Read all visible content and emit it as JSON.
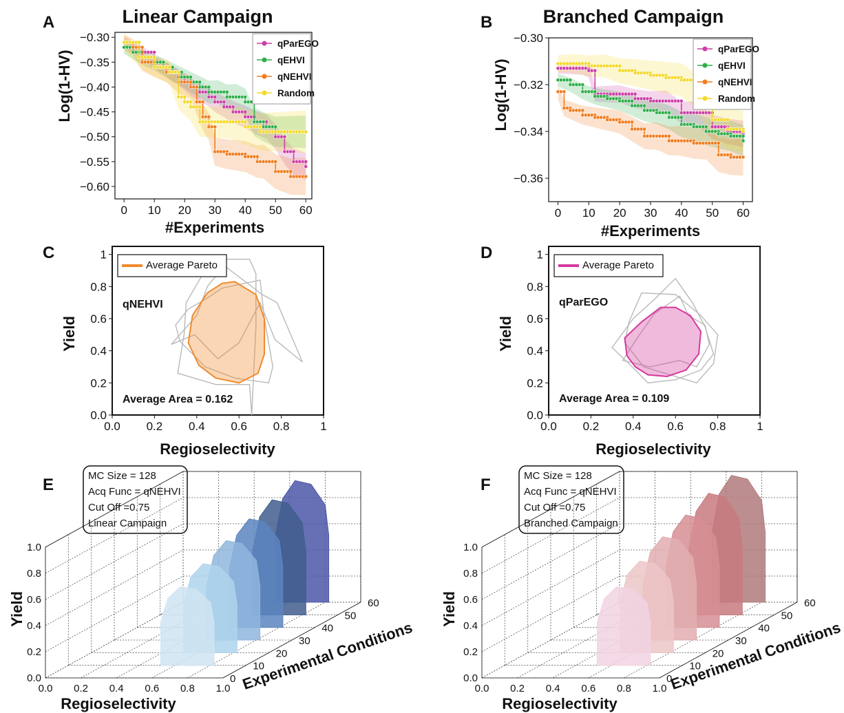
{
  "panels": {
    "A": "A",
    "B": "B",
    "C": "C",
    "D": "D",
    "E": "E",
    "F": "F"
  },
  "chart_data": [
    {
      "id": "A",
      "type": "line",
      "title": "Linear Campaign",
      "xlabel": "#Experiments",
      "ylabel": "Log(1-HV)",
      "xlim": [
        -3,
        62
      ],
      "ylim": [
        -0.625,
        -0.29
      ],
      "xticks": [
        0,
        10,
        20,
        30,
        40,
        50,
        60
      ],
      "yticks": [
        -0.3,
        -0.35,
        -0.4,
        -0.45,
        -0.5,
        -0.55,
        -0.6
      ],
      "ytick_labels": [
        "−0.30",
        "−0.35",
        "−0.40",
        "−0.45",
        "−0.50",
        "−0.55",
        "−0.60"
      ],
      "legend_position": "top-right",
      "series": [
        {
          "name": "qParEGO",
          "color": "#cc3fa6",
          "x": [
            0,
            3,
            6,
            10,
            13,
            15,
            18,
            20,
            22,
            25,
            28,
            30,
            33,
            36,
            40,
            43,
            47,
            50,
            53,
            56,
            60
          ],
          "y": [
            -0.31,
            -0.32,
            -0.33,
            -0.35,
            -0.36,
            -0.37,
            -0.38,
            -0.39,
            -0.4,
            -0.41,
            -0.42,
            -0.43,
            -0.44,
            -0.45,
            -0.46,
            -0.47,
            -0.48,
            -0.5,
            -0.53,
            -0.55,
            -0.56
          ]
        },
        {
          "name": "qEHVI",
          "color": "#2fae4a",
          "x": [
            0,
            3,
            6,
            10,
            13,
            16,
            19,
            22,
            25,
            28,
            31,
            34,
            37,
            40,
            43,
            46,
            50,
            55,
            60
          ],
          "y": [
            -0.32,
            -0.33,
            -0.34,
            -0.35,
            -0.36,
            -0.37,
            -0.38,
            -0.39,
            -0.4,
            -0.41,
            -0.41,
            -0.42,
            -0.42,
            -0.43,
            -0.47,
            -0.48,
            -0.49,
            -0.49,
            -0.49
          ]
        },
        {
          "name": "qNEHVI",
          "color": "#f07d1f",
          "x": [
            0,
            3,
            6,
            10,
            14,
            18,
            22,
            24,
            26,
            28,
            30,
            34,
            40,
            44,
            46,
            50,
            55,
            60
          ],
          "y": [
            -0.31,
            -0.32,
            -0.35,
            -0.36,
            -0.37,
            -0.39,
            -0.4,
            -0.43,
            -0.46,
            -0.48,
            -0.53,
            -0.535,
            -0.54,
            -0.55,
            -0.55,
            -0.57,
            -0.58,
            -0.58
          ]
        },
        {
          "name": "Random",
          "color": "#f2d92a",
          "x": [
            0,
            5,
            10,
            15,
            18,
            20,
            22,
            25,
            30,
            35,
            40,
            45,
            50,
            55,
            60
          ],
          "y": [
            -0.31,
            -0.34,
            -0.36,
            -0.37,
            -0.42,
            -0.43,
            -0.44,
            -0.47,
            -0.47,
            -0.47,
            -0.48,
            -0.49,
            -0.49,
            -0.49,
            -0.49
          ]
        }
      ]
    },
    {
      "id": "B",
      "type": "line",
      "title": "Branched Campaign",
      "xlabel": "#Experiments",
      "ylabel": "Log(1-HV)",
      "xlim": [
        -3,
        63
      ],
      "ylim": [
        -0.37,
        -0.3
      ],
      "xticks": [
        0,
        10,
        20,
        30,
        40,
        50,
        60
      ],
      "yticks": [
        -0.3,
        -0.32,
        -0.34,
        -0.36
      ],
      "ytick_labels": [
        "−0.30",
        "−0.32",
        "−0.34",
        "−0.36"
      ],
      "legend_position": "top-right",
      "series": [
        {
          "name": "qParEGO",
          "color": "#cc3fa6",
          "x": [
            0,
            4,
            8,
            10,
            12,
            16,
            20,
            25,
            30,
            35,
            40,
            45,
            50,
            55,
            60
          ],
          "y": [
            -0.313,
            -0.313,
            -0.313,
            -0.314,
            -0.324,
            -0.324,
            -0.324,
            -0.326,
            -0.327,
            -0.327,
            -0.332,
            -0.332,
            -0.338,
            -0.34,
            -0.341
          ]
        },
        {
          "name": "qEHVI",
          "color": "#2fae4a",
          "x": [
            0,
            4,
            8,
            12,
            16,
            20,
            24,
            28,
            32,
            36,
            40,
            44,
            48,
            52,
            56,
            60
          ],
          "y": [
            -0.318,
            -0.32,
            -0.323,
            -0.325,
            -0.326,
            -0.327,
            -0.329,
            -0.331,
            -0.332,
            -0.334,
            -0.337,
            -0.338,
            -0.34,
            -0.341,
            -0.342,
            -0.344
          ]
        },
        {
          "name": "qNEHVI",
          "color": "#f07d1f",
          "x": [
            0,
            2,
            4,
            8,
            12,
            16,
            20,
            24,
            28,
            32,
            36,
            40,
            44,
            48,
            52,
            56,
            60
          ],
          "y": [
            -0.323,
            -0.33,
            -0.331,
            -0.333,
            -0.334,
            -0.335,
            -0.336,
            -0.339,
            -0.342,
            -0.342,
            -0.344,
            -0.344,
            -0.345,
            -0.345,
            -0.35,
            -0.351,
            -0.351
          ]
        },
        {
          "name": "Random",
          "color": "#f2d92a",
          "x": [
            0,
            5,
            10,
            15,
            20,
            25,
            30,
            35,
            40,
            45,
            50,
            55,
            60
          ],
          "y": [
            -0.311,
            -0.311,
            -0.312,
            -0.312,
            -0.314,
            -0.315,
            -0.316,
            -0.317,
            -0.318,
            -0.323,
            -0.335,
            -0.339,
            -0.34
          ]
        }
      ]
    },
    {
      "id": "C",
      "type": "scatter",
      "xlabel": "Regioselectivity",
      "ylabel": "Yield",
      "xlim": [
        0,
        1
      ],
      "ylim": [
        0,
        1.05
      ],
      "xticks": [
        0,
        0.2,
        0.4,
        0.6,
        0.8,
        1
      ],
      "xtick_labels": [
        "0.0",
        "0.2",
        "0.4",
        "0.6",
        "0.8",
        "1"
      ],
      "yticks": [
        0,
        0.2,
        0.4,
        0.6,
        0.8,
        1
      ],
      "ytick_labels": [
        "0.0",
        "0.2",
        "0.4",
        "0.6",
        "0.8",
        "1"
      ],
      "legend": "Average Pareto",
      "method_label": "qNEHVI",
      "area_label": "Average Area = 0.162",
      "color": "#f08a2a",
      "average_polygon": [
        [
          0.58,
          0.83
        ],
        [
          0.68,
          0.75
        ],
        [
          0.72,
          0.6
        ],
        [
          0.72,
          0.38
        ],
        [
          0.69,
          0.26
        ],
        [
          0.6,
          0.2
        ],
        [
          0.49,
          0.23
        ],
        [
          0.41,
          0.31
        ],
        [
          0.36,
          0.45
        ],
        [
          0.38,
          0.62
        ],
        [
          0.45,
          0.76
        ],
        [
          0.52,
          0.82
        ]
      ],
      "run_polygons": [
        [
          [
            0.65,
            0.97
          ],
          [
            0.68,
            0.88
          ],
          [
            0.68,
            0.55
          ],
          [
            0.66,
            0.0
          ],
          [
            0.65,
            0.19
          ],
          [
            0.49,
            0.19
          ],
          [
            0.31,
            0.26
          ],
          [
            0.34,
            0.5
          ],
          [
            0.35,
            0.7
          ],
          [
            0.43,
            0.88
          ],
          [
            0.52,
            0.97
          ]
        ],
        [
          [
            0.52,
            0.79
          ],
          [
            0.7,
            0.84
          ],
          [
            0.72,
            0.6
          ],
          [
            0.76,
            0.3
          ],
          [
            0.74,
            0.2
          ],
          [
            0.58,
            0.23
          ],
          [
            0.44,
            0.3
          ],
          [
            0.32,
            0.46
          ],
          [
            0.3,
            0.56
          ],
          [
            0.36,
            0.66
          ],
          [
            0.44,
            0.72
          ]
        ],
        [
          [
            0.53,
            0.93
          ],
          [
            0.71,
            0.75
          ],
          [
            0.78,
            0.7
          ],
          [
            0.9,
            0.33
          ],
          [
            0.77,
            0.47
          ],
          [
            0.7,
            0.7
          ],
          [
            0.6,
            0.45
          ],
          [
            0.5,
            0.35
          ],
          [
            0.39,
            0.5
          ],
          [
            0.28,
            0.44
          ],
          [
            0.4,
            0.62
          ],
          [
            0.45,
            0.8
          ]
        ]
      ]
    },
    {
      "id": "D",
      "type": "scatter",
      "xlabel": "Regioselectivity",
      "ylabel": "Yield",
      "xlim": [
        0,
        1
      ],
      "ylim": [
        0,
        1.05
      ],
      "xticks": [
        0,
        0.2,
        0.4,
        0.6,
        0.8,
        1
      ],
      "xtick_labels": [
        "0.0",
        "0.2",
        "0.4",
        "0.6",
        "0.8",
        "1"
      ],
      "yticks": [
        0,
        0.2,
        0.4,
        0.6,
        0.8,
        1
      ],
      "ytick_labels": [
        "0.0",
        "0.2",
        "0.4",
        "0.6",
        "0.8",
        "1"
      ],
      "legend": "Average Pareto",
      "method_label": "qParEGO",
      "area_label": "Average Area = 0.109",
      "color": "#d4399c",
      "average_polygon": [
        [
          0.53,
          0.67
        ],
        [
          0.6,
          0.67
        ],
        [
          0.67,
          0.62
        ],
        [
          0.72,
          0.52
        ],
        [
          0.71,
          0.38
        ],
        [
          0.65,
          0.28
        ],
        [
          0.56,
          0.24
        ],
        [
          0.47,
          0.25
        ],
        [
          0.41,
          0.3
        ],
        [
          0.37,
          0.37
        ],
        [
          0.36,
          0.48
        ],
        [
          0.44,
          0.58
        ]
      ],
      "run_polygons": [
        [
          [
            0.6,
            0.85
          ],
          [
            0.68,
            0.7
          ],
          [
            0.74,
            0.55
          ],
          [
            0.78,
            0.38
          ],
          [
            0.72,
            0.28
          ],
          [
            0.6,
            0.22
          ],
          [
            0.47,
            0.2
          ],
          [
            0.38,
            0.32
          ],
          [
            0.3,
            0.42
          ],
          [
            0.4,
            0.6
          ],
          [
            0.5,
            0.72
          ]
        ],
        [
          [
            0.44,
            0.76
          ],
          [
            0.6,
            0.75
          ],
          [
            0.72,
            0.62
          ],
          [
            0.8,
            0.5
          ],
          [
            0.78,
            0.32
          ],
          [
            0.7,
            0.2
          ],
          [
            0.55,
            0.26
          ],
          [
            0.45,
            0.3
          ],
          [
            0.36,
            0.45
          ],
          [
            0.38,
            0.58
          ]
        ],
        [
          [
            0.62,
            0.74
          ],
          [
            0.66,
            0.62
          ],
          [
            0.74,
            0.56
          ],
          [
            0.76,
            0.44
          ],
          [
            0.7,
            0.3
          ],
          [
            0.62,
            0.34
          ],
          [
            0.48,
            0.3
          ],
          [
            0.35,
            0.34
          ],
          [
            0.43,
            0.5
          ],
          [
            0.5,
            0.63
          ]
        ]
      ]
    },
    {
      "id": "E",
      "type": "area",
      "xlabel": "Regioselectivity",
      "ylabel": "Yield",
      "zlabel": "Experimental Conditions",
      "xtick_labels": [
        "0.0",
        "0.2",
        "0.4",
        "0.6",
        "0.8",
        "1.0"
      ],
      "ytick_labels": [
        "0.0",
        "0.2",
        "0.4",
        "0.6",
        "0.8",
        "1.0"
      ],
      "ztick_labels": [
        "0",
        "10",
        "20",
        "30",
        "40",
        "50",
        "60"
      ],
      "info": [
        "MC Size = 128",
        "Acq Func = qNEHVI",
        "Cut Off =0.75",
        "Linear Campaign"
      ],
      "slices": [
        {
          "z": 10,
          "top": 0.6,
          "color": "#cfe4f2"
        },
        {
          "z": 20,
          "top": 0.68,
          "color": "#aed3ec"
        },
        {
          "z": 30,
          "top": 0.76,
          "color": "#8fb6dd"
        },
        {
          "z": 40,
          "top": 0.83,
          "color": "#5c85c0"
        },
        {
          "z": 50,
          "top": 0.88,
          "color": "#415d8e"
        },
        {
          "z": 60,
          "top": 0.93,
          "color": "#4e57a8"
        }
      ]
    },
    {
      "id": "F",
      "type": "area",
      "xlabel": "Regioselectivity",
      "ylabel": "Yield",
      "zlabel": "Experimental Conditions",
      "xtick_labels": [
        "0.0",
        "0.2",
        "0.4",
        "0.6",
        "0.8",
        "1.0"
      ],
      "ytick_labels": [
        "0.0",
        "0.2",
        "0.4",
        "0.6",
        "0.8",
        "1.0"
      ],
      "ztick_labels": [
        "0",
        "10",
        "20",
        "30",
        "40",
        "50",
        "60"
      ],
      "info": [
        "MC Size = 128",
        "Acq Func = qNEHVI",
        "Cut Off =0.75",
        "Branched Campaign"
      ],
      "slices": [
        {
          "z": 10,
          "top": 0.6,
          "color": "#f1d3e2"
        },
        {
          "z": 20,
          "top": 0.7,
          "color": "#ecc6c8"
        },
        {
          "z": 30,
          "top": 0.79,
          "color": "#e2aeb0"
        },
        {
          "z": 40,
          "top": 0.86,
          "color": "#d68e93"
        },
        {
          "z": 50,
          "top": 0.93,
          "color": "#c87a80"
        },
        {
          "z": 60,
          "top": 0.97,
          "color": "#b27a7b"
        }
      ]
    }
  ]
}
